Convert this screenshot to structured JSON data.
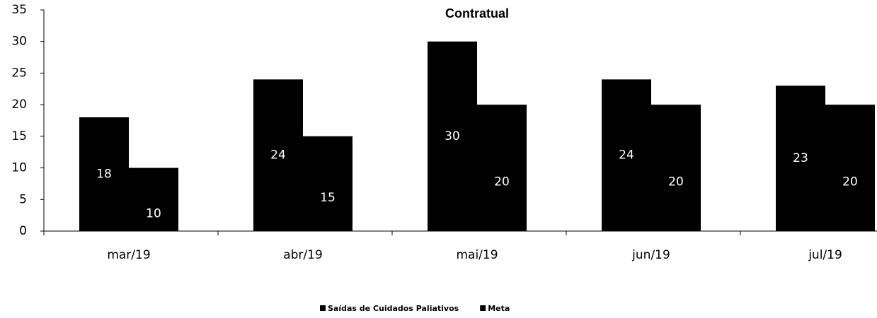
{
  "chart_data": {
    "type": "bar",
    "title": "Contratual",
    "categories": [
      "mar/19",
      "abr/19",
      "mai/19",
      "jun/19",
      "jul/19"
    ],
    "series": [
      {
        "name": "Saídas de Cuidados Paliativos",
        "color": "#000000",
        "values": [
          18,
          24,
          30,
          24,
          23
        ]
      },
      {
        "name": "Meta",
        "color": "#000000",
        "values": [
          10,
          15,
          20,
          20,
          20
        ]
      }
    ],
    "ylim": [
      0,
      35
    ],
    "yticks": [
      0,
      5,
      10,
      15,
      20,
      25,
      30,
      35
    ],
    "grid": false,
    "legend": "bottom"
  }
}
